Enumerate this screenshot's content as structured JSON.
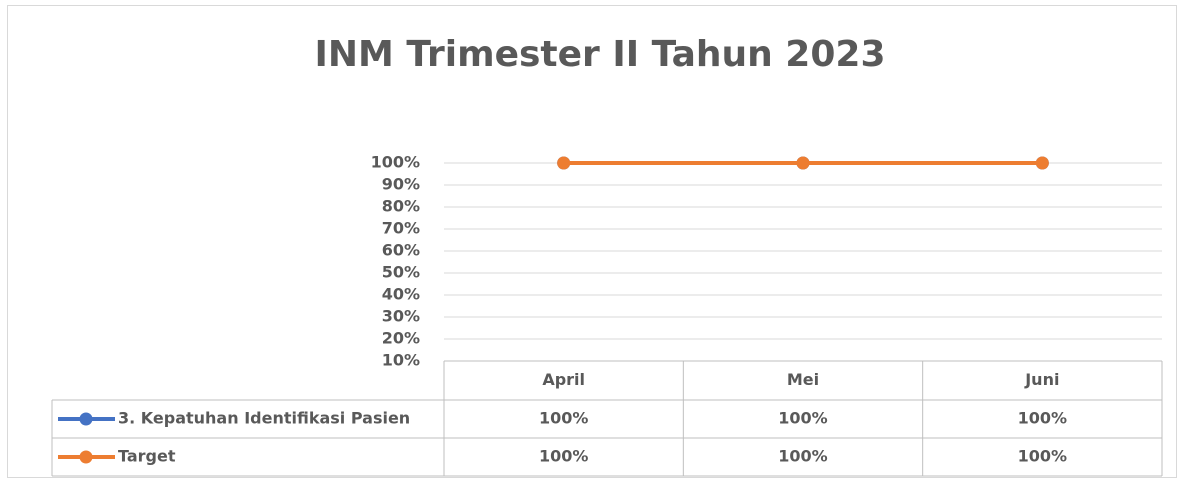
{
  "chart_data": {
    "type": "line",
    "title": "INM Trimester II Tahun 2023",
    "categories": [
      "April",
      "Mei",
      "Juni"
    ],
    "series": [
      {
        "name": "3. Kepatuhan Identifikasi Pasien",
        "color": "#4472c4",
        "values": [
          100,
          100,
          100
        ],
        "value_labels": [
          "100%",
          "100%",
          "100%"
        ]
      },
      {
        "name": "Target",
        "color": "#ed7d31",
        "values": [
          100,
          100,
          100
        ],
        "value_labels": [
          "100%",
          "100%",
          "100%"
        ]
      }
    ],
    "ylim": [
      10,
      100
    ],
    "yticks": [
      {
        "value": 10,
        "label": "10%"
      },
      {
        "value": 20,
        "label": "20%"
      },
      {
        "value": 30,
        "label": "30%"
      },
      {
        "value": 40,
        "label": "40%"
      },
      {
        "value": 50,
        "label": "50%"
      },
      {
        "value": 60,
        "label": "60%"
      },
      {
        "value": 70,
        "label": "70%"
      },
      {
        "value": 80,
        "label": "80%"
      },
      {
        "value": 90,
        "label": "90%"
      },
      {
        "value": 100,
        "label": "100%"
      }
    ],
    "grid": true
  }
}
